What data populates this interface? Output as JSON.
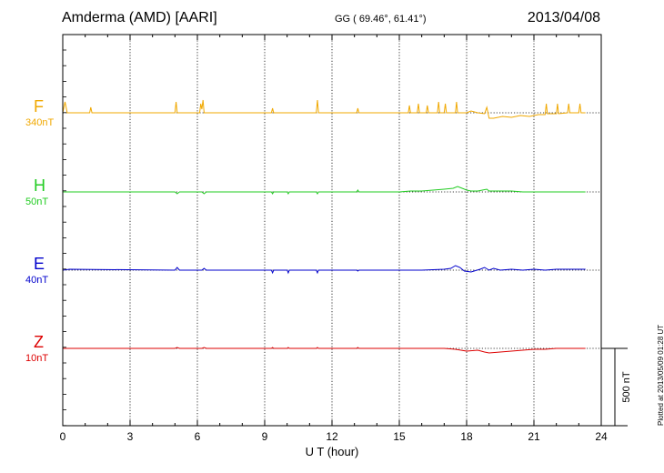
{
  "header": {
    "title": "Amderma (AMD)  [AARI]",
    "coords": "GG ( 69.46°,  61.41°)",
    "date": "2013/04/08",
    "plotted": "Plotted at 2013/05/09 01:28 UT"
  },
  "colors": {
    "F": "#f0a800",
    "H": "#22cc22",
    "E": "#0000cc",
    "Z": "#dd0000",
    "axis": "#000000"
  },
  "chart_data": {
    "type": "line",
    "xlabel": "U T (hour)",
    "xlim": [
      0,
      24
    ],
    "xticks": [
      "0",
      "3",
      "6",
      "9",
      "12",
      "15",
      "18",
      "21",
      "24"
    ],
    "grid": true,
    "scale_bar_label": "500 nT",
    "series": [
      {
        "name": "F",
        "scale": "340nT",
        "color": "#f0a800",
        "x": [
          0,
          0.1,
          0.2,
          1.2,
          1.25,
          1.3,
          5,
          5.05,
          5.1,
          6.1,
          6.15,
          6.2,
          6.25,
          6.3,
          9.3,
          9.35,
          9.4,
          11.3,
          11.35,
          11.4,
          13.1,
          13.15,
          13.2,
          15.0,
          15.4,
          15.45,
          15.5,
          15.8,
          15.85,
          15.9,
          16.2,
          16.25,
          16.3,
          16.7,
          16.75,
          16.8,
          17.0,
          17.05,
          17.1,
          17.5,
          17.55,
          17.6,
          18.0,
          18.2,
          18.5,
          18.8,
          18.9,
          19.0,
          19.2,
          19.6,
          20.0,
          20.4,
          20.8,
          21.2,
          21.5,
          21.55,
          21.6,
          22.0,
          22.05,
          22.1,
          22.5,
          22.55,
          22.6,
          23.0,
          23.05,
          23.1,
          23.3
        ],
        "y": [
          0,
          12,
          0,
          0,
          6,
          0,
          0,
          12,
          0,
          0,
          10,
          4,
          14,
          0,
          0,
          5,
          0,
          0,
          14,
          0,
          0,
          5,
          0,
          0,
          0,
          8,
          0,
          0,
          10,
          0,
          0,
          8,
          0,
          0,
          12,
          0,
          0,
          10,
          0,
          0,
          12,
          0,
          0,
          2,
          0,
          -1,
          6,
          -6,
          -6,
          -4,
          -5,
          -3,
          -4,
          -2,
          -2,
          10,
          -1,
          -1,
          10,
          -1,
          0,
          10,
          0,
          0,
          10,
          0,
          0
        ]
      },
      {
        "name": "H",
        "scale": "50nT",
        "color": "#22cc22",
        "x": [
          0,
          0.5,
          5.0,
          5.1,
          5.2,
          6.2,
          6.3,
          6.4,
          9.3,
          9.35,
          9.4,
          10.0,
          10.05,
          10.1,
          11.3,
          11.35,
          11.4,
          13.1,
          13.15,
          13.2,
          15.0,
          15.5,
          16.0,
          16.5,
          17.0,
          17.4,
          17.6,
          17.8,
          18.0,
          18.2,
          18.5,
          18.7,
          18.9,
          19.0,
          19.5,
          20.0,
          20.5,
          21.0,
          21.5,
          22.0,
          22.5,
          23.0,
          23.3
        ],
        "y": [
          0,
          0,
          0,
          -2,
          0,
          0,
          -2,
          0,
          0,
          -2,
          0,
          0,
          -2,
          0,
          0,
          -2,
          0,
          0,
          2,
          0,
          0,
          1,
          1,
          2,
          3,
          4,
          6,
          4,
          2,
          1,
          1,
          2,
          3,
          1,
          1,
          1,
          0,
          0,
          0,
          0,
          0,
          0,
          0
        ]
      },
      {
        "name": "E",
        "scale": "40nT",
        "color": "#0000cc",
        "x": [
          0,
          0.3,
          5.0,
          5.1,
          5.2,
          6.2,
          6.3,
          6.4,
          9.3,
          9.35,
          9.4,
          10.0,
          10.05,
          10.1,
          11.3,
          11.35,
          11.4,
          13.1,
          13.15,
          13.2,
          15.0,
          16.0,
          17.0,
          17.3,
          17.5,
          17.7,
          17.9,
          18.2,
          18.6,
          18.8,
          19.0,
          19.2,
          19.5,
          20.0,
          20.5,
          21.0,
          21.5,
          22.0,
          22.5,
          23.0,
          23.3
        ],
        "y": [
          0,
          1,
          0,
          3,
          0,
          0,
          2,
          0,
          0,
          -3,
          0,
          0,
          -3,
          0,
          0,
          -3,
          0,
          0,
          -1,
          0,
          0,
          0,
          1,
          2,
          5,
          3,
          -1,
          -2,
          1,
          3,
          0,
          2,
          0,
          1,
          0,
          1,
          0,
          1,
          1,
          1,
          1
        ]
      },
      {
        "name": "Z",
        "scale": "10nT",
        "color": "#dd0000",
        "x": [
          0,
          0.5,
          5.0,
          5.1,
          5.2,
          6.2,
          6.3,
          6.4,
          9.3,
          9.35,
          9.4,
          10.0,
          10.05,
          10.1,
          11.3,
          11.35,
          11.4,
          13.1,
          13.15,
          13.2,
          15.0,
          16.0,
          17.0,
          17.5,
          18.0,
          18.5,
          18.8,
          19.0,
          19.5,
          20.0,
          20.5,
          21.0,
          21.5,
          22.0,
          22.5,
          23.0,
          23.3
        ],
        "y": [
          0,
          0,
          0,
          1,
          0,
          0,
          1,
          0,
          0,
          1,
          0,
          0,
          1,
          0,
          0,
          1,
          0,
          0,
          1,
          0,
          0,
          0,
          0,
          -1,
          -3,
          -2,
          -4,
          -5,
          -4,
          -3,
          -2,
          -1,
          -1,
          0,
          0,
          0,
          0
        ]
      }
    ]
  }
}
